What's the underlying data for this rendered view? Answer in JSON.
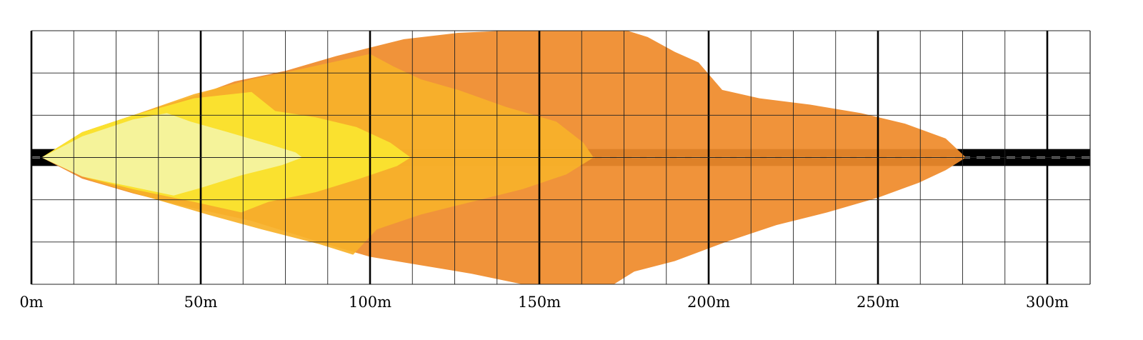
{
  "chart_data": {
    "type": "area",
    "title": "",
    "xlabel": "",
    "ylabel": "",
    "x_unit": "m",
    "xlim": [
      0,
      310
    ],
    "ylim": [
      -3,
      3
    ],
    "grid": true,
    "x_major_ticks": [
      0,
      50,
      100,
      150,
      200,
      250,
      300
    ],
    "x_tick_labels": [
      "0m",
      "50m",
      "100m",
      "150m",
      "200m",
      "250m",
      "300m"
    ],
    "x_minor_step": 12.5,
    "y_grid_step": 1,
    "road_color": "#000000",
    "road_center_line_color": "#ffffff",
    "series": [
      {
        "color": "#ef8b2b",
        "upper": [
          [
            3,
            0
          ],
          [
            15,
            0.6
          ],
          [
            30,
            1.0
          ],
          [
            50,
            1.5
          ],
          [
            60,
            1.8
          ],
          [
            75,
            2.05
          ],
          [
            90,
            2.4
          ],
          [
            110,
            2.8
          ],
          [
            126,
            2.95
          ],
          [
            140,
            3.0
          ],
          [
            176,
            3.0
          ],
          [
            182,
            2.85
          ],
          [
            190,
            2.5
          ],
          [
            197,
            2.25
          ],
          [
            204,
            1.6
          ],
          [
            215,
            1.4
          ],
          [
            230,
            1.25
          ],
          [
            245,
            1.05
          ],
          [
            258,
            0.8
          ],
          [
            270,
            0.45
          ],
          [
            276,
            0
          ]
        ],
        "lower": [
          [
            3,
            0
          ],
          [
            15,
            -0.5
          ],
          [
            30,
            -0.85
          ],
          [
            45,
            -1.15
          ],
          [
            65,
            -1.5
          ],
          [
            85,
            -2.0
          ],
          [
            100,
            -2.35
          ],
          [
            115,
            -2.55
          ],
          [
            130,
            -2.75
          ],
          [
            145,
            -3.0
          ],
          [
            172,
            -3.0
          ],
          [
            178,
            -2.7
          ],
          [
            190,
            -2.45
          ],
          [
            205,
            -2.0
          ],
          [
            220,
            -1.6
          ],
          [
            235,
            -1.3
          ],
          [
            250,
            -0.95
          ],
          [
            262,
            -0.6
          ],
          [
            270,
            -0.3
          ],
          [
            276,
            0
          ]
        ]
      },
      {
        "color": "#f8b12a",
        "upper": [
          [
            3,
            0
          ],
          [
            15,
            0.6
          ],
          [
            30,
            1.0
          ],
          [
            48,
            1.5
          ],
          [
            65,
            1.85
          ],
          [
            80,
            2.1
          ],
          [
            100,
            2.45
          ],
          [
            107,
            2.15
          ],
          [
            115,
            1.85
          ],
          [
            126,
            1.6
          ],
          [
            140,
            1.2
          ],
          [
            155,
            0.85
          ],
          [
            163,
            0.35
          ],
          [
            166,
            0
          ]
        ],
        "lower": [
          [
            3,
            0
          ],
          [
            18,
            -0.55
          ],
          [
            35,
            -0.95
          ],
          [
            52,
            -1.35
          ],
          [
            68,
            -1.7
          ],
          [
            85,
            -2.05
          ],
          [
            95,
            -2.3
          ],
          [
            102,
            -1.7
          ],
          [
            115,
            -1.35
          ],
          [
            130,
            -1.05
          ],
          [
            145,
            -0.75
          ],
          [
            158,
            -0.4
          ],
          [
            166,
            0
          ]
        ]
      },
      {
        "color": "#fae52f",
        "upper": [
          [
            3,
            0
          ],
          [
            15,
            0.6
          ],
          [
            30,
            1.0
          ],
          [
            48,
            1.4
          ],
          [
            65,
            1.55
          ],
          [
            72,
            1.1
          ],
          [
            84,
            0.95
          ],
          [
            96,
            0.72
          ],
          [
            106,
            0.35
          ],
          [
            112,
            0
          ]
        ],
        "lower": [
          [
            3,
            0
          ],
          [
            15,
            -0.45
          ],
          [
            30,
            -0.75
          ],
          [
            48,
            -1.05
          ],
          [
            62,
            -1.3
          ],
          [
            70,
            -1.05
          ],
          [
            84,
            -0.82
          ],
          [
            97,
            -0.5
          ],
          [
            108,
            -0.2
          ],
          [
            112,
            0
          ]
        ]
      },
      {
        "color": "#f4f4a2",
        "upper": [
          [
            3,
            0
          ],
          [
            15,
            0.5
          ],
          [
            30,
            0.9
          ],
          [
            40,
            1.05
          ],
          [
            47,
            0.85
          ],
          [
            58,
            0.6
          ],
          [
            70,
            0.32
          ],
          [
            78,
            0.12
          ],
          [
            80,
            0
          ]
        ],
        "lower": [
          [
            3,
            0
          ],
          [
            15,
            -0.45
          ],
          [
            30,
            -0.7
          ],
          [
            42,
            -0.9
          ],
          [
            50,
            -0.72
          ],
          [
            62,
            -0.42
          ],
          [
            74,
            -0.18
          ],
          [
            80,
            0
          ]
        ]
      }
    ]
  }
}
